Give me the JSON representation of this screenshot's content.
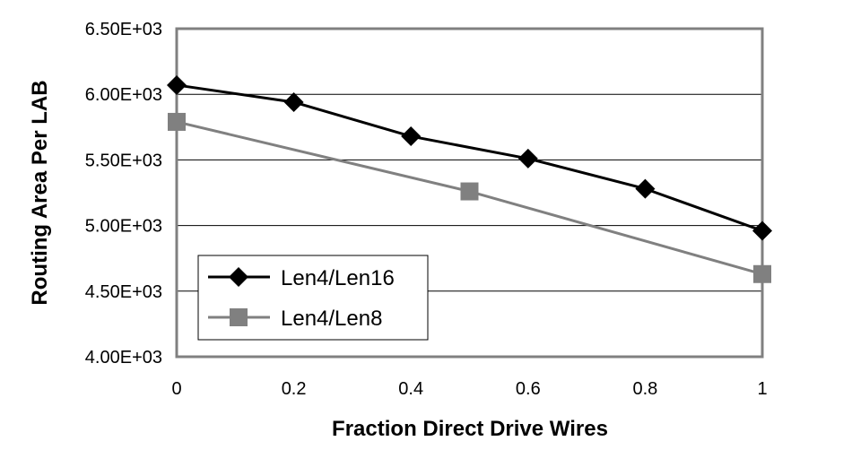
{
  "chart_data": {
    "type": "line",
    "xlabel": "Fraction Direct Drive Wires",
    "ylabel": "Routing Area Per LAB",
    "xlim": [
      0,
      1
    ],
    "ylim": [
      4000,
      6500
    ],
    "x_ticks": [
      "0",
      "0.2",
      "0.4",
      "0.6",
      "0.8",
      "1"
    ],
    "y_ticks": [
      "4.00E+03",
      "4.50E+03",
      "5.00E+03",
      "5.50E+03",
      "6.00E+03",
      "6.50E+03"
    ],
    "grid": "horizontal",
    "legend_position": "bottom-left",
    "series": [
      {
        "name": "Len4/Len16",
        "marker": "diamond",
        "color": "#000000",
        "points": [
          [
            0,
            6070
          ],
          [
            0.2,
            5940
          ],
          [
            0.4,
            5680
          ],
          [
            0.6,
            5510
          ],
          [
            0.8,
            5280
          ],
          [
            1,
            4960
          ]
        ]
      },
      {
        "name": "Len4/Len8",
        "marker": "square",
        "color": "#808080",
        "points": [
          [
            0,
            5790
          ],
          [
            0.5,
            5260
          ],
          [
            1,
            4630
          ]
        ]
      }
    ]
  }
}
